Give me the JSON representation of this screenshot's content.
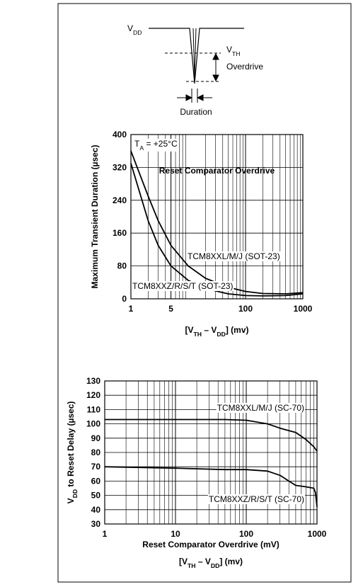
{
  "diagram": {
    "vdd_label": [
      "V",
      "DD"
    ],
    "vth_label": [
      "V",
      "TH"
    ],
    "overdrive_label": "Overdrive",
    "duration_label": "Duration"
  },
  "chart_data": [
    {
      "type": "line",
      "annotation": [
        "T",
        "A",
        " = +25°C"
      ],
      "ylabel": [
        "Maximum Transient Duration (µsec)"
      ],
      "xlabel": "Reset Comparator Overdrive",
      "xlabel2": [
        "[V",
        "TH",
        " – V",
        "DD",
        "] (mv)"
      ],
      "log_x": true,
      "grid": true,
      "xlim": [
        1,
        1000
      ],
      "xticks": [
        1,
        5,
        100,
        1000
      ],
      "ylim": [
        0,
        400
      ],
      "yticks": [
        0,
        80,
        160,
        240,
        320,
        400
      ],
      "series": [
        {
          "name": "TCM8XXL/M/J (SOT-23)",
          "color": "#000000",
          "x": [
            1,
            2,
            3,
            5,
            10,
            20,
            50,
            100,
            200,
            500,
            1000
          ],
          "values": [
            360,
            250,
            190,
            130,
            80,
            50,
            28,
            18,
            13,
            12,
            15
          ]
        },
        {
          "name": "TCM8XXZ/R/S/T (SOT-23)",
          "color": "#000000",
          "x": [
            1,
            2,
            3,
            5,
            10,
            20,
            50,
            100,
            200,
            500,
            1000
          ],
          "values": [
            330,
            190,
            130,
            80,
            45,
            25,
            12,
            8,
            7,
            8,
            12
          ]
        }
      ]
    },
    {
      "type": "line",
      "ylabel": [
        "V",
        "DD",
        " to Reset Delay (µsec)"
      ],
      "xlabel": "Reset Comparator Overdrive (mV)",
      "xlabel2": [
        "[V",
        "TH",
        " – V",
        "DD",
        "] (mv)"
      ],
      "log_x": true,
      "grid": true,
      "xlim": [
        1,
        1000
      ],
      "xticks": [
        1,
        10,
        100,
        1000
      ],
      "ylim": [
        30,
        130
      ],
      "yticks": [
        30,
        40,
        50,
        60,
        70,
        80,
        90,
        100,
        110,
        120,
        130
      ],
      "series": [
        {
          "name": "TCM8XXL/M/J (SC-70)",
          "color": "#000000",
          "x": [
            1,
            10,
            50,
            100,
            200,
            300,
            500,
            700,
            900,
            1000
          ],
          "values": [
            103,
            103,
            103,
            102.5,
            100,
            97,
            94,
            89,
            84,
            81
          ]
        },
        {
          "name": "TCM8XXZ/R/S/T (SC-70)",
          "color": "#000000",
          "x": [
            1,
            10,
            50,
            100,
            200,
            300,
            400,
            500,
            700,
            900,
            950,
            1000
          ],
          "values": [
            70,
            69,
            68,
            68,
            67,
            64,
            60,
            57,
            56,
            55,
            52,
            42
          ]
        }
      ]
    }
  ]
}
